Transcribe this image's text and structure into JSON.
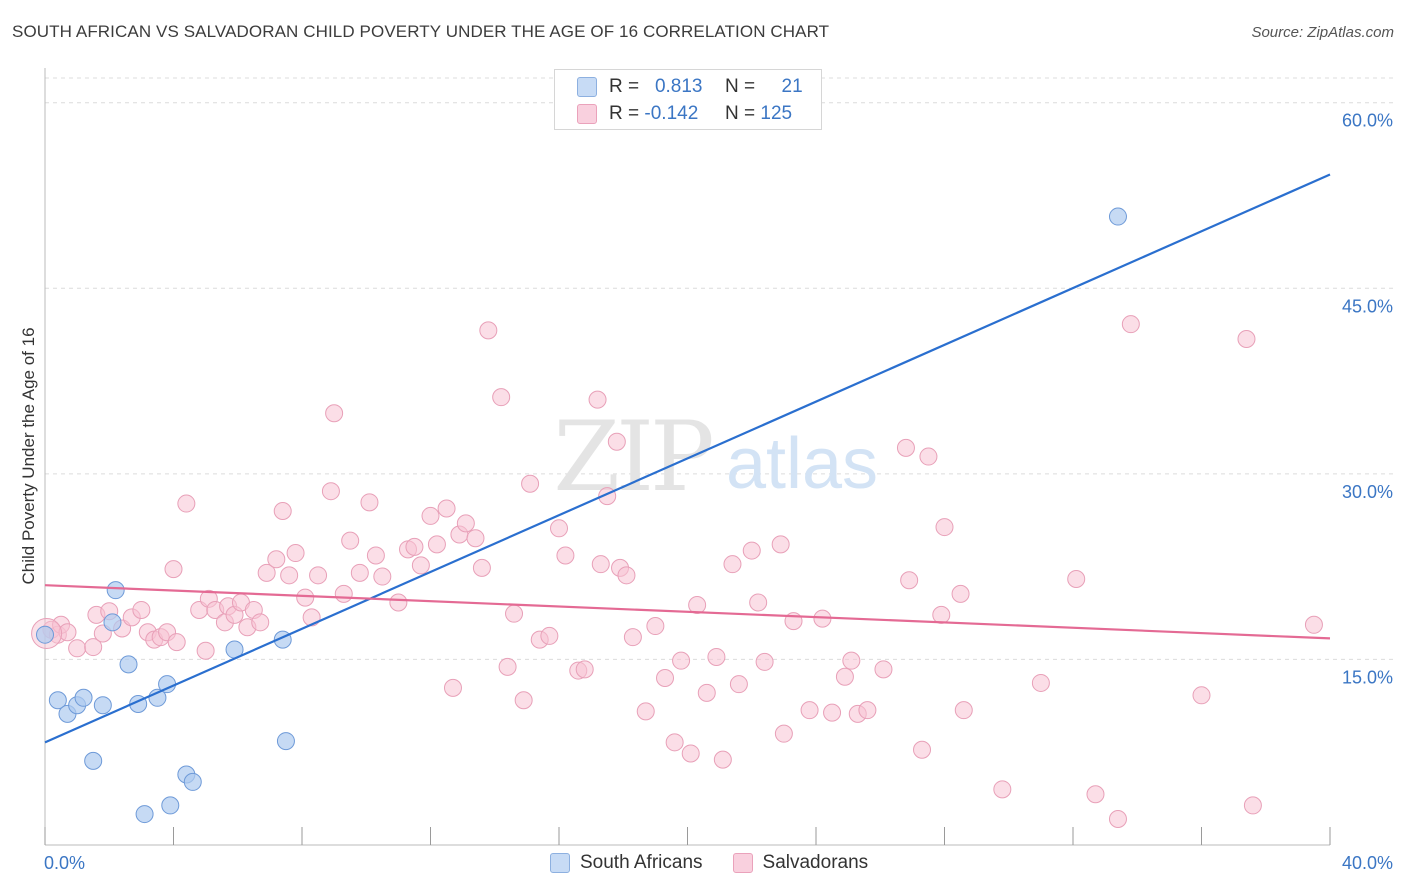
{
  "header": {
    "title": "SOUTH AFRICAN VS SALVADORAN CHILD POVERTY UNDER THE AGE OF 16 CORRELATION CHART",
    "source": "Source: ZipAtlas.com"
  },
  "watermark": {
    "zip": "ZIP",
    "atlas": "atlas"
  },
  "legend_top": {
    "rows": [
      {
        "r_label": "R =",
        "r_value": "0.813",
        "n_label": "N =",
        "n_value": "21"
      },
      {
        "r_label": "R =",
        "r_value": "-0.142",
        "n_label": "N =",
        "n_value": "125"
      }
    ]
  },
  "legend_bottom": {
    "items": [
      "South Africans",
      "Salvadorans"
    ]
  },
  "colors": {
    "blue_fill": "#aecbf0",
    "blue_stroke": "#6e9ad8",
    "blue_line": "#2a6fcf",
    "pink_fill": "#f7c3d4",
    "pink_stroke": "#e8a0b8",
    "pink_line": "#e46a94",
    "tick_label": "#3b76c4",
    "grid": "#dcdcdc"
  },
  "chart_data": {
    "type": "scatter",
    "title": "SOUTH AFRICAN VS SALVADORAN CHILD POVERTY UNDER THE AGE OF 16 CORRELATION CHART",
    "xlabel": "",
    "ylabel": "Child Poverty Under the Age of 16",
    "xlim": [
      0,
      40
    ],
    "ylim": [
      0,
      62
    ],
    "x_tick_labels": [
      "0.0%",
      "40.0%"
    ],
    "y_ticks": [
      15,
      30,
      45,
      60
    ],
    "y_tick_labels": [
      "15.0%",
      "30.0%",
      "45.0%",
      "60.0%"
    ],
    "grid": true,
    "legend_position": "top-center",
    "series": [
      {
        "name": "South Africans",
        "r": 0.813,
        "n": 21,
        "trend": [
          [
            0,
            8.3
          ],
          [
            40,
            54.2
          ]
        ],
        "points": [
          [
            0.0,
            17.0
          ],
          [
            0.4,
            11.7
          ],
          [
            0.7,
            10.6
          ],
          [
            1.0,
            11.3
          ],
          [
            1.2,
            11.9
          ],
          [
            1.5,
            6.8
          ],
          [
            1.8,
            11.3
          ],
          [
            2.2,
            20.6
          ],
          [
            2.6,
            14.6
          ],
          [
            2.9,
            11.4
          ],
          [
            3.1,
            2.5
          ],
          [
            3.5,
            11.9
          ],
          [
            3.8,
            13.0
          ],
          [
            3.9,
            3.2
          ],
          [
            4.4,
            5.7
          ],
          [
            4.6,
            5.1
          ],
          [
            5.9,
            15.8
          ],
          [
            7.4,
            16.6
          ],
          [
            7.5,
            8.4
          ],
          [
            33.4,
            50.8
          ],
          [
            2.1,
            18.0
          ]
        ]
      },
      {
        "name": "Salvadorans",
        "r": -0.142,
        "n": 125,
        "trend": [
          [
            0,
            21.0
          ],
          [
            40,
            16.7
          ]
        ],
        "points": [
          [
            0.2,
            17.4
          ],
          [
            0.4,
            17.0
          ],
          [
            0.5,
            17.8
          ],
          [
            0.7,
            17.2
          ],
          [
            1.0,
            15.9
          ],
          [
            1.5,
            16.0
          ],
          [
            1.6,
            18.6
          ],
          [
            1.8,
            17.1
          ],
          [
            2.0,
            18.9
          ],
          [
            2.4,
            17.5
          ],
          [
            2.7,
            18.4
          ],
          [
            3.0,
            19.0
          ],
          [
            3.2,
            17.2
          ],
          [
            3.4,
            16.6
          ],
          [
            3.6,
            16.8
          ],
          [
            3.8,
            17.2
          ],
          [
            4.1,
            16.4
          ],
          [
            4.0,
            22.3
          ],
          [
            4.4,
            27.6
          ],
          [
            4.8,
            19.0
          ],
          [
            5.0,
            15.7
          ],
          [
            5.1,
            19.9
          ],
          [
            5.3,
            19.0
          ],
          [
            5.6,
            18.0
          ],
          [
            5.7,
            19.3
          ],
          [
            5.9,
            18.6
          ],
          [
            6.1,
            19.6
          ],
          [
            6.3,
            17.6
          ],
          [
            6.5,
            19.0
          ],
          [
            6.7,
            18.0
          ],
          [
            6.9,
            22.0
          ],
          [
            7.2,
            23.1
          ],
          [
            7.4,
            27.0
          ],
          [
            7.6,
            21.8
          ],
          [
            7.8,
            23.6
          ],
          [
            8.1,
            20.0
          ],
          [
            8.3,
            18.4
          ],
          [
            8.5,
            21.8
          ],
          [
            8.9,
            28.6
          ],
          [
            9.0,
            34.9
          ],
          [
            9.3,
            20.3
          ],
          [
            9.5,
            24.6
          ],
          [
            9.8,
            22.0
          ],
          [
            10.1,
            27.7
          ],
          [
            10.3,
            23.4
          ],
          [
            10.5,
            21.7
          ],
          [
            11.0,
            19.6
          ],
          [
            11.3,
            23.9
          ],
          [
            11.5,
            24.1
          ],
          [
            11.7,
            22.6
          ],
          [
            12.0,
            26.6
          ],
          [
            12.2,
            24.3
          ],
          [
            12.5,
            27.2
          ],
          [
            12.7,
            12.7
          ],
          [
            12.9,
            25.1
          ],
          [
            13.1,
            26.0
          ],
          [
            13.4,
            24.8
          ],
          [
            13.6,
            22.4
          ],
          [
            13.8,
            41.6
          ],
          [
            14.2,
            36.2
          ],
          [
            14.4,
            14.4
          ],
          [
            14.6,
            18.7
          ],
          [
            14.9,
            11.7
          ],
          [
            15.1,
            29.2
          ],
          [
            15.4,
            16.6
          ],
          [
            15.7,
            16.9
          ],
          [
            16.0,
            25.6
          ],
          [
            16.2,
            23.4
          ],
          [
            16.6,
            14.1
          ],
          [
            16.8,
            14.2
          ],
          [
            17.2,
            36.0
          ],
          [
            17.3,
            22.7
          ],
          [
            17.5,
            28.2
          ],
          [
            17.8,
            32.6
          ],
          [
            17.9,
            22.4
          ],
          [
            18.1,
            21.8
          ],
          [
            18.3,
            16.8
          ],
          [
            18.7,
            10.8
          ],
          [
            19.0,
            17.7
          ],
          [
            19.3,
            13.5
          ],
          [
            19.6,
            8.3
          ],
          [
            19.8,
            14.9
          ],
          [
            20.1,
            7.4
          ],
          [
            20.3,
            19.4
          ],
          [
            20.6,
            12.3
          ],
          [
            20.9,
            15.2
          ],
          [
            21.1,
            6.9
          ],
          [
            21.4,
            22.7
          ],
          [
            21.6,
            13.0
          ],
          [
            22.0,
            23.8
          ],
          [
            22.2,
            19.6
          ],
          [
            22.4,
            14.8
          ],
          [
            22.9,
            24.3
          ],
          [
            23.0,
            9.0
          ],
          [
            23.3,
            18.1
          ],
          [
            23.8,
            10.9
          ],
          [
            24.2,
            18.3
          ],
          [
            24.5,
            10.7
          ],
          [
            24.9,
            13.6
          ],
          [
            25.1,
            14.9
          ],
          [
            25.3,
            10.6
          ],
          [
            25.6,
            10.9
          ],
          [
            26.1,
            14.2
          ],
          [
            26.8,
            32.1
          ],
          [
            26.9,
            21.4
          ],
          [
            27.3,
            7.7
          ],
          [
            27.5,
            31.4
          ],
          [
            27.9,
            18.6
          ],
          [
            28.0,
            25.7
          ],
          [
            28.5,
            20.3
          ],
          [
            28.6,
            10.9
          ],
          [
            29.8,
            4.5
          ],
          [
            31.0,
            13.1
          ],
          [
            32.1,
            21.5
          ],
          [
            32.7,
            4.1
          ],
          [
            33.4,
            2.1
          ],
          [
            33.8,
            42.1
          ],
          [
            36.0,
            12.1
          ],
          [
            37.4,
            40.9
          ],
          [
            37.6,
            3.2
          ],
          [
            39.5,
            17.8
          ]
        ]
      }
    ]
  }
}
